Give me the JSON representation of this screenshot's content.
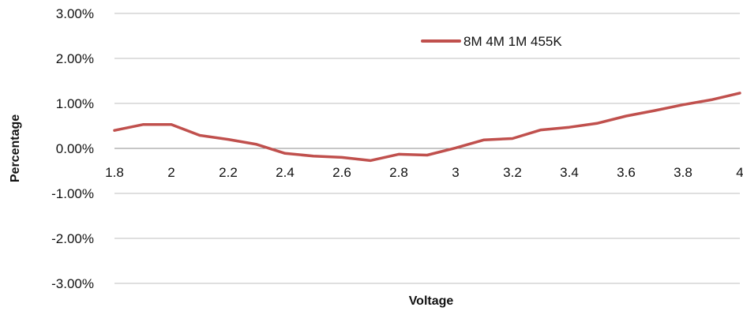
{
  "chart_data": {
    "type": "line",
    "title": "",
    "xlabel": "Voltage",
    "ylabel": "Percentage",
    "x": [
      1.8,
      1.9,
      2.0,
      2.1,
      2.2,
      2.3,
      2.4,
      2.5,
      2.6,
      2.7,
      2.8,
      2.9,
      3.0,
      3.1,
      3.2,
      3.3,
      3.4,
      3.5,
      3.6,
      3.7,
      3.8,
      3.9,
      4.0
    ],
    "x_tick_labels": [
      "1.8",
      "2",
      "2.2",
      "2.4",
      "2.6",
      "2.8",
      "3",
      "3.2",
      "3.4",
      "3.6",
      "3.8",
      "4"
    ],
    "x_tick_values": [
      1.8,
      2.0,
      2.2,
      2.4,
      2.6,
      2.8,
      3.0,
      3.2,
      3.4,
      3.6,
      3.8,
      4.0
    ],
    "y_tick_labels": [
      "3.00%",
      "2.00%",
      "1.00%",
      "0.00%",
      "-1.00%",
      "-2.00%",
      "-3.00%"
    ],
    "y_tick_values": [
      3,
      2,
      1,
      0,
      -1,
      -2,
      -3
    ],
    "ylim": [
      -3,
      3
    ],
    "xlim": [
      1.8,
      4.0
    ],
    "grid": "horizontal",
    "legend_position": "top-right",
    "series": [
      {
        "name": "8M 4M 1M 455K",
        "color": "#c0504d",
        "values": [
          0.4,
          0.53,
          0.53,
          0.29,
          0.2,
          0.09,
          -0.11,
          -0.17,
          -0.2,
          -0.27,
          -0.13,
          -0.15,
          0.01,
          0.19,
          0.22,
          0.41,
          0.47,
          0.56,
          0.72,
          0.84,
          0.97,
          1.08,
          1.23
        ]
      }
    ]
  }
}
